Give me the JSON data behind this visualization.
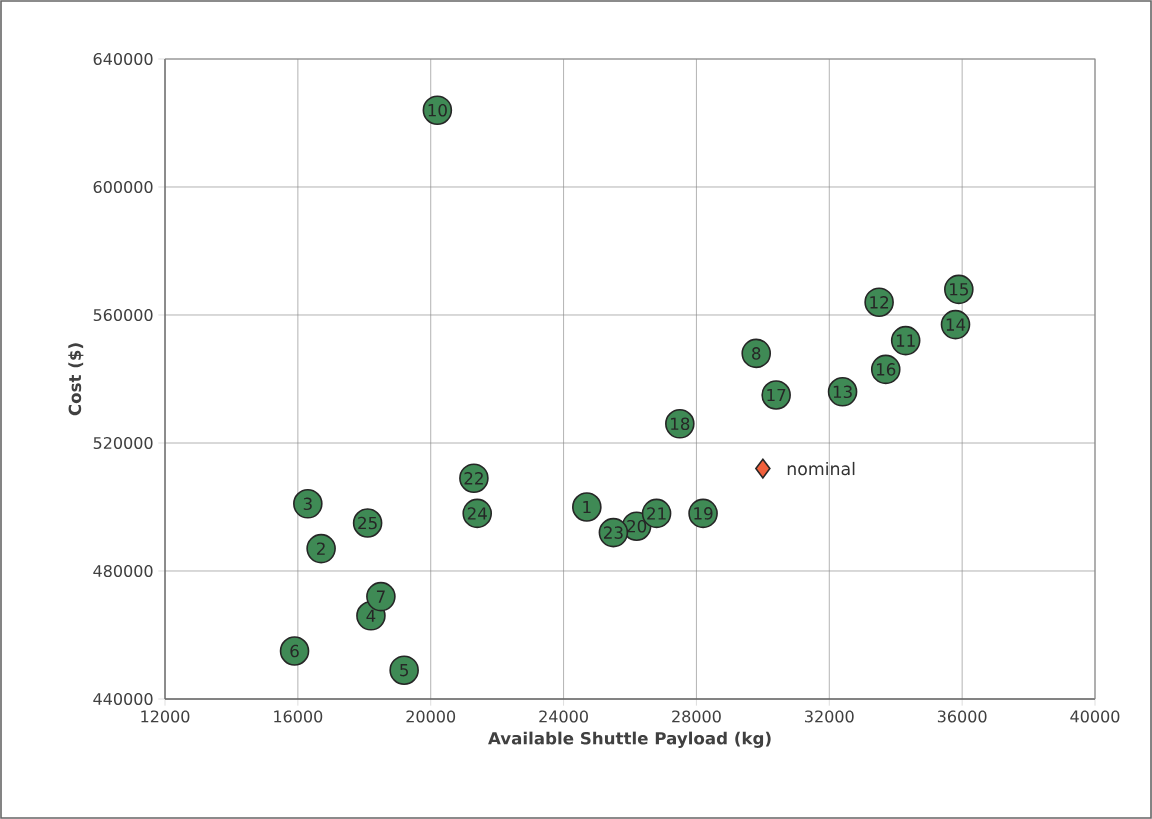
{
  "chart_data": {
    "type": "scatter",
    "xlabel": "Available Shuttle Payload (kg)",
    "ylabel": "Cost ($)",
    "xlim": [
      12000,
      40000
    ],
    "xticks": [
      12000,
      16000,
      20000,
      24000,
      28000,
      32000,
      36000,
      40000
    ],
    "ylim": [
      440000,
      640000
    ],
    "yticks": [
      440000,
      480000,
      520000,
      560000,
      600000,
      640000
    ],
    "grid": true,
    "series": [
      {
        "color": "#3f8a55",
        "marker": "circle",
        "x": [
          24700,
          16700,
          16300,
          18200,
          19200,
          15900,
          18500,
          29800,
          20200,
          34300,
          33500,
          32400,
          35800,
          35900,
          33700,
          30400,
          27500,
          28200,
          26200,
          26800,
          21300,
          25500,
          21400,
          18100
        ],
        "values": [
          500000,
          487000,
          501000,
          466000,
          449000,
          455000,
          472000,
          548000,
          624000,
          552000,
          564000,
          536000,
          557000,
          568000,
          543000,
          535000,
          526000,
          498000,
          494000,
          498000,
          509000,
          492000,
          498000,
          495000
        ]
      },
      {
        "name": "nominal",
        "color": "#f0603c",
        "marker": "diamond",
        "x": [
          30000
        ],
        "values": [
          512000
        ]
      }
    ],
    "annotations": [
      {
        "text": "1",
        "x": 24700,
        "y": 500000
      },
      {
        "text": "2",
        "x": 16700,
        "y": 487000
      },
      {
        "text": "3",
        "x": 16300,
        "y": 501000
      },
      {
        "text": "4",
        "x": 18200,
        "y": 466000
      },
      {
        "text": "5",
        "x": 19200,
        "y": 449000
      },
      {
        "text": "6",
        "x": 15900,
        "y": 455000
      },
      {
        "text": "7",
        "x": 18500,
        "y": 472000
      },
      {
        "text": "8",
        "x": 29800,
        "y": 548000
      },
      {
        "text": "10",
        "x": 20200,
        "y": 624000
      },
      {
        "text": "11",
        "x": 34300,
        "y": 552000
      },
      {
        "text": "12",
        "x": 33500,
        "y": 564000
      },
      {
        "text": "13",
        "x": 32400,
        "y": 536000
      },
      {
        "text": "14",
        "x": 35800,
        "y": 557000
      },
      {
        "text": "15",
        "x": 35900,
        "y": 568000
      },
      {
        "text": "16",
        "x": 33700,
        "y": 543000
      },
      {
        "text": "17",
        "x": 30400,
        "y": 535000
      },
      {
        "text": "18",
        "x": 27500,
        "y": 526000
      },
      {
        "text": "19",
        "x": 28200,
        "y": 498000
      },
      {
        "text": "20",
        "x": 26200,
        "y": 494000
      },
      {
        "text": "21",
        "x": 26800,
        "y": 498000
      },
      {
        "text": "22",
        "x": 21300,
        "y": 509000
      },
      {
        "text": "23",
        "x": 25500,
        "y": 492000
      },
      {
        "text": "24",
        "x": 21400,
        "y": 498000
      },
      {
        "text": "25",
        "x": 18100,
        "y": 495000
      }
    ]
  }
}
